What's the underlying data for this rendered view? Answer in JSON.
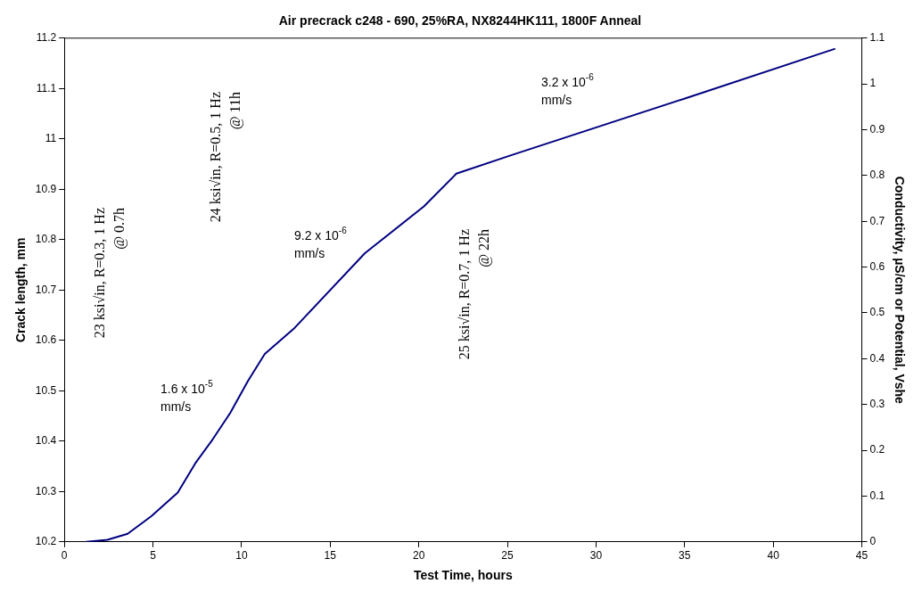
{
  "chart_data": {
    "type": "line",
    "title": "Air precrack c248 - 690, 25%RA, NX8244HK111, 1800F Anneal",
    "xlabel": "Test Time, hours",
    "ylabel": "Crack length, mm",
    "y2label": "Conductivity, µS/cm or Potential, Vshe",
    "series": [
      {
        "color": "#000080",
        "x": [
          1.24,
          2.43,
          3.57,
          4.91,
          6.4,
          7.39,
          8.38,
          9.38,
          10.37,
          11.31,
          13.0,
          16.96,
          20.29,
          22.12,
          25.25,
          35.17,
          43.5
        ],
        "values": [
          10.2,
          10.204,
          10.216,
          10.251,
          10.298,
          10.356,
          10.404,
          10.457,
          10.52,
          10.573,
          10.625,
          10.773,
          10.866,
          10.931,
          10.968,
          11.082,
          11.179
        ]
      }
    ],
    "xlim": [
      0,
      45
    ],
    "xticks": [
      0,
      5,
      10,
      15,
      20,
      25,
      30,
      35,
      40,
      45
    ],
    "ylim": [
      10.2,
      11.2
    ],
    "yticks": [
      10.2,
      10.3,
      10.4,
      10.5,
      10.6,
      10.7,
      10.8,
      10.9,
      11,
      11.1,
      11.2
    ],
    "y2lim": [
      0,
      1.1
    ],
    "y2ticks": [
      0,
      0.1,
      0.2,
      0.3,
      0.4,
      0.5,
      0.6,
      0.7,
      0.8,
      0.9,
      1,
      1.1
    ],
    "marker": "none",
    "line_style": "solid",
    "legend": false,
    "annotations": [
      "23 ksi√in, R=0.3, 1 Hz\n@ 0.7h",
      "24 ksi√in, R=0.5, 1 Hz\n@ 11h",
      "25 ksi√in, R=0.7, 1 Hz\n@ 22h",
      "1.6 x 10$^{-5}$\nmm/s",
      "9.2 x 10$^{-6}$\nmm/s",
      "3.2 x 10$^{-6}$\nmm/s"
    ]
  }
}
